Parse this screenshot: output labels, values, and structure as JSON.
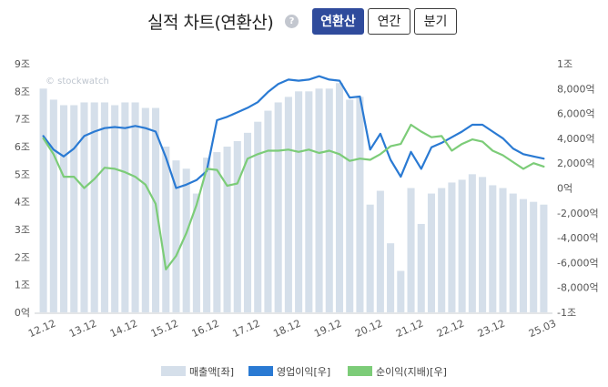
{
  "header": {
    "title": "실적 차트(연환산)",
    "help_icon": "question-icon",
    "help_glyph": "?",
    "buttons": [
      "연환산",
      "연간",
      "분기"
    ],
    "active_button": 0
  },
  "watermark": "© stockwatch",
  "colors": {
    "bar": "#d5dfea",
    "operating": "#2a7ad3",
    "net": "#7ccc78",
    "active_button": "#2f4b9c"
  },
  "chart_data": {
    "type": "bar",
    "title": "실적 차트(연환산)",
    "left_axis": {
      "ylim": [
        0,
        9
      ],
      "ticks": [
        "0억",
        "1조",
        "2조",
        "3조",
        "4조",
        "5조",
        "6조",
        "7조",
        "8조",
        "9조"
      ]
    },
    "right_axis": {
      "ylim": [
        -12000,
        10000
      ],
      "ticks": [
        "-1조",
        "-8,000억",
        "-6,000억",
        "-4,000억",
        "-2,000억",
        "0억",
        "2,000억",
        "4,000억",
        "6,000억",
        "8,000억",
        "1조"
      ]
    },
    "x_ticks": [
      "12.12",
      "13.12",
      "14.12",
      "15.12",
      "16.12",
      "17.12",
      "18.12",
      "19.12",
      "20.12",
      "21.12",
      "22.12",
      "23.12",
      "25.03"
    ],
    "x_tick_index": [
      0,
      4,
      8,
      12,
      16,
      20,
      24,
      28,
      32,
      36,
      40,
      44,
      49
    ],
    "series": [
      {
        "name": "매출액[좌]",
        "type": "bar",
        "axis": "left",
        "values": [
          8.1,
          7.7,
          7.5,
          7.5,
          7.6,
          7.6,
          7.6,
          7.5,
          7.6,
          7.6,
          7.4,
          7.4,
          6.0,
          5.5,
          5.2,
          4.3,
          5.6,
          5.8,
          6.0,
          6.2,
          6.5,
          6.9,
          7.3,
          7.6,
          7.8,
          8.0,
          8.0,
          8.1,
          8.1,
          8.3,
          7.7,
          7.8,
          3.9,
          4.4,
          2.5,
          1.5,
          4.5,
          3.2,
          4.3,
          4.5,
          4.7,
          4.8,
          5.0,
          4.9,
          4.6,
          4.5,
          4.3,
          4.1,
          4.0,
          3.9
        ]
      },
      {
        "name": "영업이익[우]",
        "type": "line",
        "axis": "right",
        "values": [
          3600,
          2400,
          1800,
          2500,
          3600,
          4000,
          4300,
          4400,
          4300,
          4500,
          4300,
          4000,
          1700,
          -1000,
          -700,
          -300,
          500,
          5000,
          5300,
          5700,
          6100,
          6600,
          7500,
          8200,
          8600,
          8500,
          8600,
          8900,
          8600,
          8500,
          7000,
          7100,
          2400,
          3800,
          1500,
          0,
          2200,
          700,
          2600,
          3000,
          3500,
          4000,
          4600,
          4600,
          4000,
          3400,
          2500,
          2000,
          1800,
          1600
        ]
      },
      {
        "name": "순이익(지배)[우]",
        "type": "line",
        "axis": "right",
        "values": [
          3400,
          2000,
          0,
          0,
          -1000,
          -200,
          800,
          700,
          400,
          0,
          -700,
          -2400,
          -8200,
          -7000,
          -5000,
          -2500,
          700,
          600,
          -800,
          -600,
          1600,
          2000,
          2300,
          2300,
          2400,
          2200,
          2400,
          2100,
          2300,
          2000,
          1400,
          1600,
          1500,
          2000,
          2700,
          2900,
          4600,
          4000,
          3500,
          3600,
          2300,
          2900,
          3300,
          3100,
          2300,
          1900,
          1300,
          700,
          1200,
          900
        ]
      }
    ],
    "legend": [
      "매출액[좌]",
      "영업이익[우]",
      "순이익(지배)[우]"
    ],
    "legend_position": "bottom",
    "grid": false
  }
}
